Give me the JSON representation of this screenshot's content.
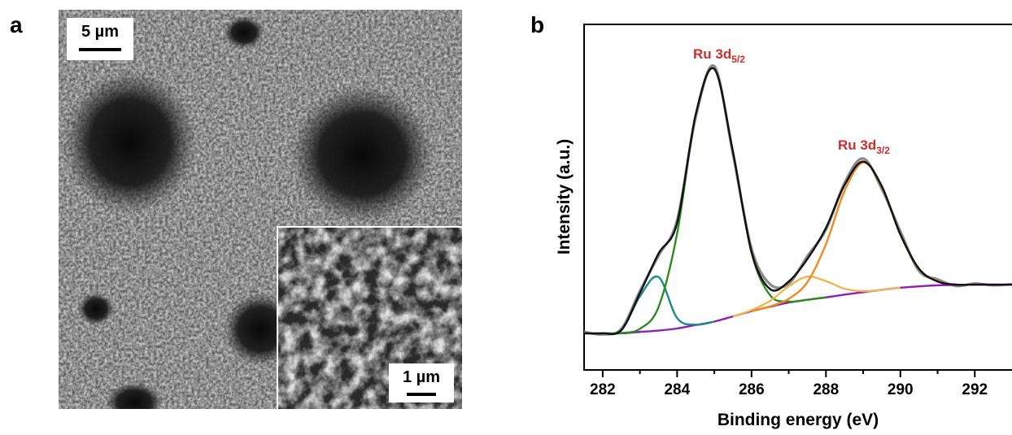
{
  "panel_a": {
    "label": "a",
    "scale_bar_label": "5 µm",
    "inset_scale_bar_label": "1 µm"
  },
  "chart_data": {
    "type": "line",
    "panel_label": "b",
    "xlabel": "Binding energy (eV)",
    "ylabel": "Intensity (a.u.)",
    "annotations": [
      {
        "text": "Ru 3d",
        "subscript": "5/2"
      },
      {
        "text": "Ru 3d",
        "subscript": "3/2"
      }
    ],
    "annotation_color": "#d42a2a",
    "x": [
      281.5,
      282,
      282.5,
      283,
      283.5,
      284,
      284.5,
      285,
      285.5,
      286,
      286.5,
      287,
      287.5,
      288,
      288.5,
      289,
      289.5,
      290,
      290.5,
      291,
      291.5,
      292,
      292.5,
      293
    ],
    "series": [
      {
        "color": "#8a8a8a",
        "values": [
          11.0,
          10.3,
          11.9,
          22.8,
          33.1,
          43.3,
          73.2,
          87.9,
          62.5,
          35.1,
          24.8,
          25.0,
          32.9,
          40.6,
          54.1,
          61.2,
          52.4,
          40.1,
          28.7,
          26.2,
          24.3,
          25.0,
          24.5,
          24.8
        ]
      },
      {
        "color": "#8b1fb8",
        "values": [
          10.6,
          10.6,
          10.6,
          11,
          11.4,
          12,
          13,
          14,
          15.5,
          17,
          18.3,
          19.5,
          20.3,
          21,
          21.8,
          22.5,
          23.2,
          23.8,
          24.2,
          24.5,
          24.6,
          24.7,
          24.7,
          24.7
        ]
      },
      {
        "color": "#1f8a8a",
        "values": [
          null,
          10.6,
          11.5,
          21.3,
          26.9,
          15.0,
          13.1,
          14,
          null,
          null,
          null,
          null,
          null,
          null,
          null,
          null,
          null,
          null,
          null,
          null,
          null,
          null,
          null,
          null
        ]
      },
      {
        "color": "#2e8b20",
        "values": [
          10.6,
          10.6,
          10.7,
          11.9,
          18.2,
          39.5,
          73.9,
          87.1,
          63.2,
          33.9,
          21.6,
          19.8,
          20.3,
          21,
          null,
          null,
          null,
          null,
          null,
          null,
          null,
          null,
          null,
          null
        ]
      },
      {
        "color": "#f0b450",
        "values": [
          null,
          null,
          null,
          null,
          null,
          null,
          null,
          null,
          15.5,
          17.3,
          20.0,
          24.2,
          27.0,
          25.7,
          23.5,
          22.8,
          23.2,
          23.8,
          null,
          null,
          null,
          null,
          null,
          null
        ]
      },
      {
        "color": "#f08a20",
        "values": [
          null,
          null,
          null,
          null,
          null,
          null,
          null,
          null,
          null,
          17,
          18.4,
          20.6,
          25.4,
          36.4,
          51.8,
          60,
          53.2,
          39.2,
          29.3,
          25.6,
          24.7,
          24.7,
          null,
          null
        ]
      },
      {
        "color": "#111111",
        "values": [
          10.6,
          10.6,
          11.5,
          22.2,
          33.7,
          42.5,
          74.0,
          87.1,
          63.2,
          34.2,
          23.4,
          25.6,
          32.1,
          41.1,
          53.5,
          60.3,
          53.2,
          39.2,
          29.3,
          25.6,
          24.7,
          24.7,
          24.7,
          24.7
        ]
      }
    ],
    "xlim": [
      281.5,
      293
    ],
    "ylim": [
      0,
      100
    ],
    "xticks": [
      282,
      284,
      286,
      288,
      290,
      292
    ],
    "xminorticks": [
      283,
      285,
      287,
      289,
      291
    ]
  }
}
